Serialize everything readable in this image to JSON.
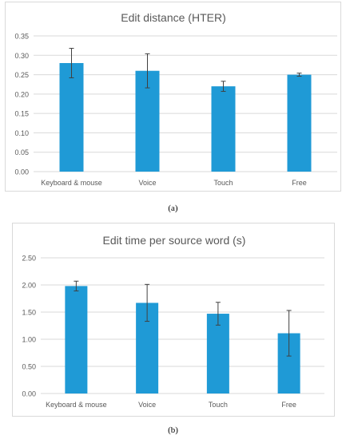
{
  "chart_data": [
    {
      "type": "bar",
      "title": "Edit distance (HTER)",
      "categories": [
        "Keyboard & mouse",
        "Voice",
        "Touch",
        "Free"
      ],
      "values": [
        0.28,
        0.26,
        0.22,
        0.25
      ],
      "error": [
        0.038,
        0.044,
        0.013,
        0.004
      ],
      "ylim": [
        0,
        0.35
      ],
      "yticks": [
        "0.00",
        "0.05",
        "0.10",
        "0.15",
        "0.20",
        "0.25",
        "0.30",
        "0.35"
      ],
      "ytick_values": [
        0,
        0.05,
        0.1,
        0.15,
        0.2,
        0.25,
        0.3,
        0.35
      ],
      "grid": true,
      "color": "#1f9ad6",
      "caption": "(a)"
    },
    {
      "type": "bar",
      "title": "Edit time per source word (s)",
      "categories": [
        "Keyboard & mouse",
        "Voice",
        "Touch",
        "Free"
      ],
      "values": [
        1.98,
        1.67,
        1.47,
        1.11
      ],
      "error": [
        0.09,
        0.34,
        0.21,
        0.42
      ],
      "ylim": [
        0,
        2.5
      ],
      "yticks": [
        "0.00",
        "0.50",
        "1.00",
        "1.50",
        "2.00",
        "2.50"
      ],
      "ytick_values": [
        0,
        0.5,
        1.0,
        1.5,
        2.0,
        2.5
      ],
      "grid": true,
      "color": "#1f9ad6",
      "caption": "(b)"
    }
  ]
}
